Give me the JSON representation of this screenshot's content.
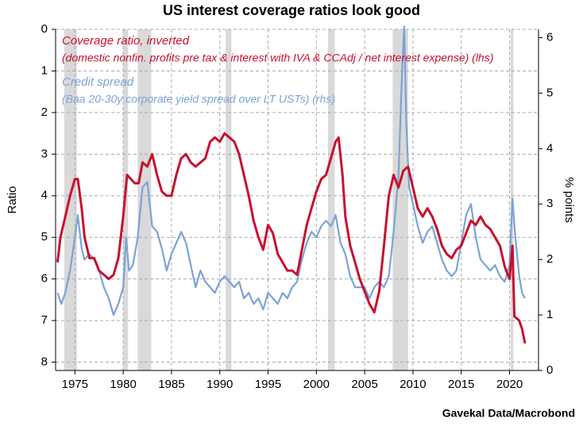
{
  "chart_data": {
    "type": "line",
    "title": "US interest coverage ratios look good",
    "source": "Gavekal Data/Macrobond",
    "ylabel": "Ratio",
    "y2label": "% points",
    "xlim": [
      1973,
      2023
    ],
    "xticks": [
      1975,
      1980,
      1985,
      1990,
      1995,
      2000,
      2005,
      2010,
      2015,
      2020
    ],
    "ylim": [
      0,
      8.2
    ],
    "y_inverted": true,
    "yticks": [
      0,
      1,
      2,
      3,
      4,
      5,
      6,
      7,
      8
    ],
    "y2lim": [
      0,
      6.15
    ],
    "y2ticks": [
      0,
      1,
      2,
      3,
      4,
      5,
      6
    ],
    "grid": true,
    "recession_color": "#d9d9d9",
    "recessions": {
      "start": [
        1973.9,
        1980.0,
        1981.5,
        1990.6,
        2001.2,
        2007.9,
        2020.1
      ],
      "end": [
        1975.2,
        1980.5,
        1982.9,
        1991.2,
        2001.9,
        2009.5,
        2020.4
      ]
    },
    "series": [
      {
        "name": "Coverage ratio, inverted",
        "description": "(domestic nonfin. profits pre tax & interest with IVA & CCAdj / net interest expense)  (lhs)",
        "color": "#c8102e",
        "axis": "y",
        "x": [
          1973.2,
          1973.5,
          1974,
          1974.5,
          1975,
          1975.3,
          1975.7,
          1976,
          1976.5,
          1977,
          1977.5,
          1978,
          1978.5,
          1979,
          1979.5,
          1980,
          1980.4,
          1980.8,
          1981.2,
          1981.6,
          1982,
          1982.5,
          1983,
          1983.5,
          1984,
          1984.5,
          1985,
          1985.5,
          1986,
          1986.5,
          1987,
          1987.5,
          1988,
          1988.5,
          1989,
          1989.5,
          1990,
          1990.5,
          1991,
          1991.5,
          1992,
          1992.5,
          1993,
          1993.5,
          1994,
          1994.5,
          1995,
          1995.5,
          1996,
          1996.5,
          1997,
          1997.5,
          1998,
          1998.5,
          1999,
          1999.5,
          2000,
          2000.5,
          2001,
          2001.5,
          2002,
          2002.3,
          2002.7,
          2003,
          2003.5,
          2004,
          2004.5,
          2005,
          2005.5,
          2006,
          2006.5,
          2007,
          2007.5,
          2008,
          2008.5,
          2009,
          2009.5,
          2010,
          2010.5,
          2011,
          2011.5,
          2012,
          2012.5,
          2013,
          2013.5,
          2014,
          2014.5,
          2015,
          2015.5,
          2016,
          2016.5,
          2017,
          2017.5,
          2018,
          2018.5,
          2019,
          2019.5,
          2020,
          2020.3,
          2020.5,
          2021,
          2021.3,
          2021.6
        ],
        "values": [
          5.6,
          5.0,
          4.5,
          4.0,
          3.6,
          3.6,
          4.3,
          5.0,
          5.5,
          5.5,
          5.8,
          5.9,
          6.0,
          5.9,
          5.5,
          4.5,
          3.5,
          3.6,
          3.7,
          3.7,
          3.2,
          3.3,
          3.0,
          3.5,
          3.9,
          4.0,
          4.0,
          3.5,
          3.1,
          3.0,
          3.2,
          3.3,
          3.2,
          3.1,
          2.7,
          2.6,
          2.7,
          2.5,
          2.6,
          2.7,
          3.0,
          3.5,
          4.0,
          4.6,
          5.0,
          5.3,
          4.7,
          4.9,
          5.4,
          5.6,
          5.8,
          5.8,
          5.9,
          5.3,
          4.7,
          4.3,
          3.9,
          3.6,
          3.5,
          3.1,
          2.7,
          2.6,
          3.5,
          4.5,
          5.2,
          5.6,
          6.0,
          6.3,
          6.6,
          6.8,
          6.3,
          5.2,
          4.0,
          3.5,
          3.8,
          3.4,
          3.3,
          3.8,
          4.3,
          4.5,
          4.3,
          4.5,
          4.8,
          5.2,
          5.4,
          5.5,
          5.3,
          5.2,
          4.9,
          4.6,
          4.7,
          4.5,
          4.7,
          4.8,
          5.0,
          5.2,
          5.7,
          6.0,
          5.2,
          6.9,
          7.0,
          7.2,
          7.55
        ]
      },
      {
        "name": "Credit spread",
        "description": "(Baa 20-30y corporate yield spread over LT USTs) (rhs)",
        "color": "#7ba3d4",
        "axis": "y2",
        "x": [
          1973.2,
          1973.6,
          1974,
          1974.5,
          1975,
          1975.3,
          1975.7,
          1976,
          1976.5,
          1977,
          1977.5,
          1978,
          1978.5,
          1979,
          1979.5,
          1980,
          1980.3,
          1980.6,
          1981,
          1981.5,
          1982,
          1982.5,
          1983,
          1983.5,
          1984,
          1984.5,
          1985,
          1985.5,
          1986,
          1986.5,
          1987,
          1987.5,
          1988,
          1988.5,
          1989,
          1989.5,
          1990,
          1990.5,
          1991,
          1991.5,
          1992,
          1992.5,
          1993,
          1993.5,
          1994,
          1994.5,
          1995,
          1995.5,
          1996,
          1996.5,
          1997,
          1997.5,
          1998,
          1998.5,
          1999,
          1999.5,
          2000,
          2000.5,
          2001,
          2001.5,
          2002,
          2002.5,
          2003,
          2003.5,
          2004,
          2004.5,
          2005,
          2005.5,
          2006,
          2006.5,
          2007,
          2007.5,
          2008,
          2008.5,
          2008.9,
          2009.1,
          2009.3,
          2009.6,
          2010,
          2010.5,
          2011,
          2011.5,
          2012,
          2012.5,
          2013,
          2013.5,
          2014,
          2014.5,
          2015,
          2015.5,
          2016,
          2016.5,
          2017,
          2017.5,
          2018,
          2018.5,
          2019,
          2019.5,
          2020,
          2020.3,
          2020.6,
          2021,
          2021.3,
          2021.6
        ],
        "values": [
          1.4,
          1.2,
          1.4,
          1.8,
          2.4,
          2.8,
          2.2,
          2.0,
          2.1,
          2.0,
          1.8,
          1.5,
          1.3,
          1.0,
          1.2,
          1.5,
          2.4,
          1.8,
          1.9,
          2.4,
          3.3,
          3.4,
          2.6,
          2.5,
          2.2,
          1.8,
          2.1,
          2.3,
          2.5,
          2.3,
          1.9,
          1.5,
          1.8,
          1.6,
          1.5,
          1.4,
          1.6,
          1.7,
          1.6,
          1.5,
          1.6,
          1.3,
          1.4,
          1.2,
          1.3,
          1.1,
          1.4,
          1.3,
          1.2,
          1.4,
          1.3,
          1.5,
          1.6,
          2.0,
          2.3,
          2.5,
          2.4,
          2.6,
          2.7,
          2.6,
          2.8,
          2.3,
          2.1,
          1.7,
          1.5,
          1.5,
          1.5,
          1.3,
          1.5,
          1.6,
          1.5,
          1.7,
          2.5,
          3.5,
          5.5,
          6.2,
          4.5,
          3.3,
          3.0,
          2.6,
          2.3,
          2.5,
          2.6,
          2.3,
          2.0,
          1.8,
          1.7,
          1.8,
          2.3,
          2.8,
          3.0,
          2.4,
          2.0,
          1.9,
          1.8,
          1.9,
          1.7,
          1.6,
          1.9,
          3.1,
          2.4,
          1.7,
          1.4,
          1.3
        ]
      }
    ]
  }
}
